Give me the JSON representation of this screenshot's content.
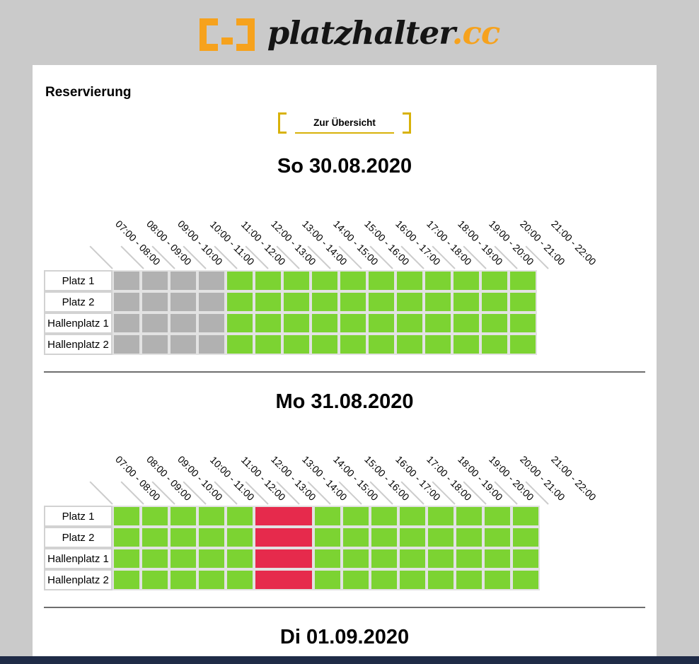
{
  "logo": {
    "brand": "platzhalter",
    "tld": ".cc",
    "accent": "#f6a21d"
  },
  "page": {
    "title": "Reservierung",
    "overview_button": "Zur Übersicht"
  },
  "colors": {
    "free": "#7cd332",
    "past": "#b1b1b1",
    "booked": "#e62a4c",
    "button_accent": "#d8b209",
    "footer": "#1f2b47"
  },
  "time_slots": [
    "07:00 - 08:00",
    "08:00 - 09:00",
    "09:00 - 10:00",
    "10:00 - 11:00",
    "11:00 - 12:00",
    "12:00 - 13:00",
    "13:00 - 14:00",
    "14:00 - 15:00",
    "15:00 - 16:00",
    "16:00 - 17:00",
    "17:00 - 18:00",
    "18:00 - 19:00",
    "19:00 - 20:00",
    "20:00 - 21:00",
    "21:00 - 22:00"
  ],
  "courts": [
    "Platz 1",
    "Platz 2",
    "Hallenplatz 1",
    "Hallenplatz 2"
  ],
  "days": [
    {
      "title": "So 30.08.2020",
      "rows": [
        [
          "past",
          "past",
          "past",
          "past",
          "free",
          "free",
          "free",
          "free",
          "free",
          "free",
          "free",
          "free",
          "free",
          "free",
          "free"
        ],
        [
          "past",
          "past",
          "past",
          "past",
          "free",
          "free",
          "free",
          "free",
          "free",
          "free",
          "free",
          "free",
          "free",
          "free",
          "free"
        ],
        [
          "past",
          "past",
          "past",
          "past",
          "free",
          "free",
          "free",
          "free",
          "free",
          "free",
          "free",
          "free",
          "free",
          "free",
          "free"
        ],
        [
          "past",
          "past",
          "past",
          "past",
          "free",
          "free",
          "free",
          "free",
          "free",
          "free",
          "free",
          "free",
          "free",
          "free",
          "free"
        ]
      ]
    },
    {
      "title": "Mo 31.08.2020",
      "rows": [
        [
          "free",
          "free",
          "free",
          "free",
          "free",
          {
            "state": "booked",
            "span": 2
          },
          "free",
          "free",
          "free",
          "free",
          "free",
          "free",
          "free",
          "free"
        ],
        [
          "free",
          "free",
          "free",
          "free",
          "free",
          {
            "state": "booked",
            "span": 2
          },
          "free",
          "free",
          "free",
          "free",
          "free",
          "free",
          "free",
          "free"
        ],
        [
          "free",
          "free",
          "free",
          "free",
          "free",
          {
            "state": "booked",
            "span": 2
          },
          "free",
          "free",
          "free",
          "free",
          "free",
          "free",
          "free",
          "free"
        ],
        [
          "free",
          "free",
          "free",
          "free",
          "free",
          {
            "state": "booked",
            "span": 2
          },
          "free",
          "free",
          "free",
          "free",
          "free",
          "free",
          "free",
          "free"
        ]
      ]
    },
    {
      "title": "Di 01.09.2020",
      "rows": []
    }
  ]
}
